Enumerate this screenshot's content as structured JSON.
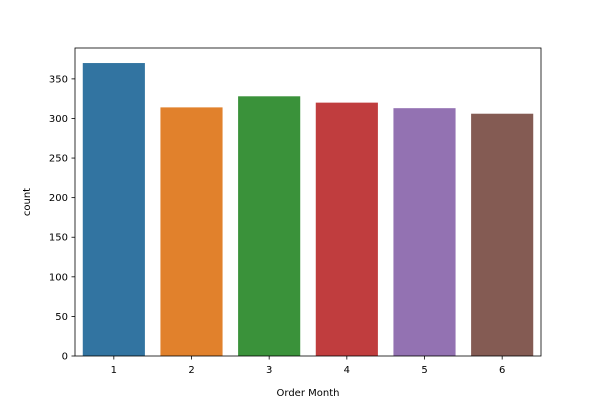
{
  "chart_data": {
    "type": "bar",
    "categories": [
      "1",
      "2",
      "3",
      "4",
      "5",
      "6"
    ],
    "values": [
      370,
      314,
      328,
      320,
      313,
      306
    ],
    "colors": [
      "#3274a1",
      "#e1812c",
      "#3a923a",
      "#c03d3e",
      "#9372b2",
      "#845b53"
    ],
    "title": "",
    "xlabel": "Order Month",
    "ylabel": "count",
    "ylim": [
      0,
      389
    ],
    "yticks": [
      0,
      50,
      100,
      150,
      200,
      250,
      300,
      350
    ],
    "grid": false,
    "legend": "none"
  }
}
